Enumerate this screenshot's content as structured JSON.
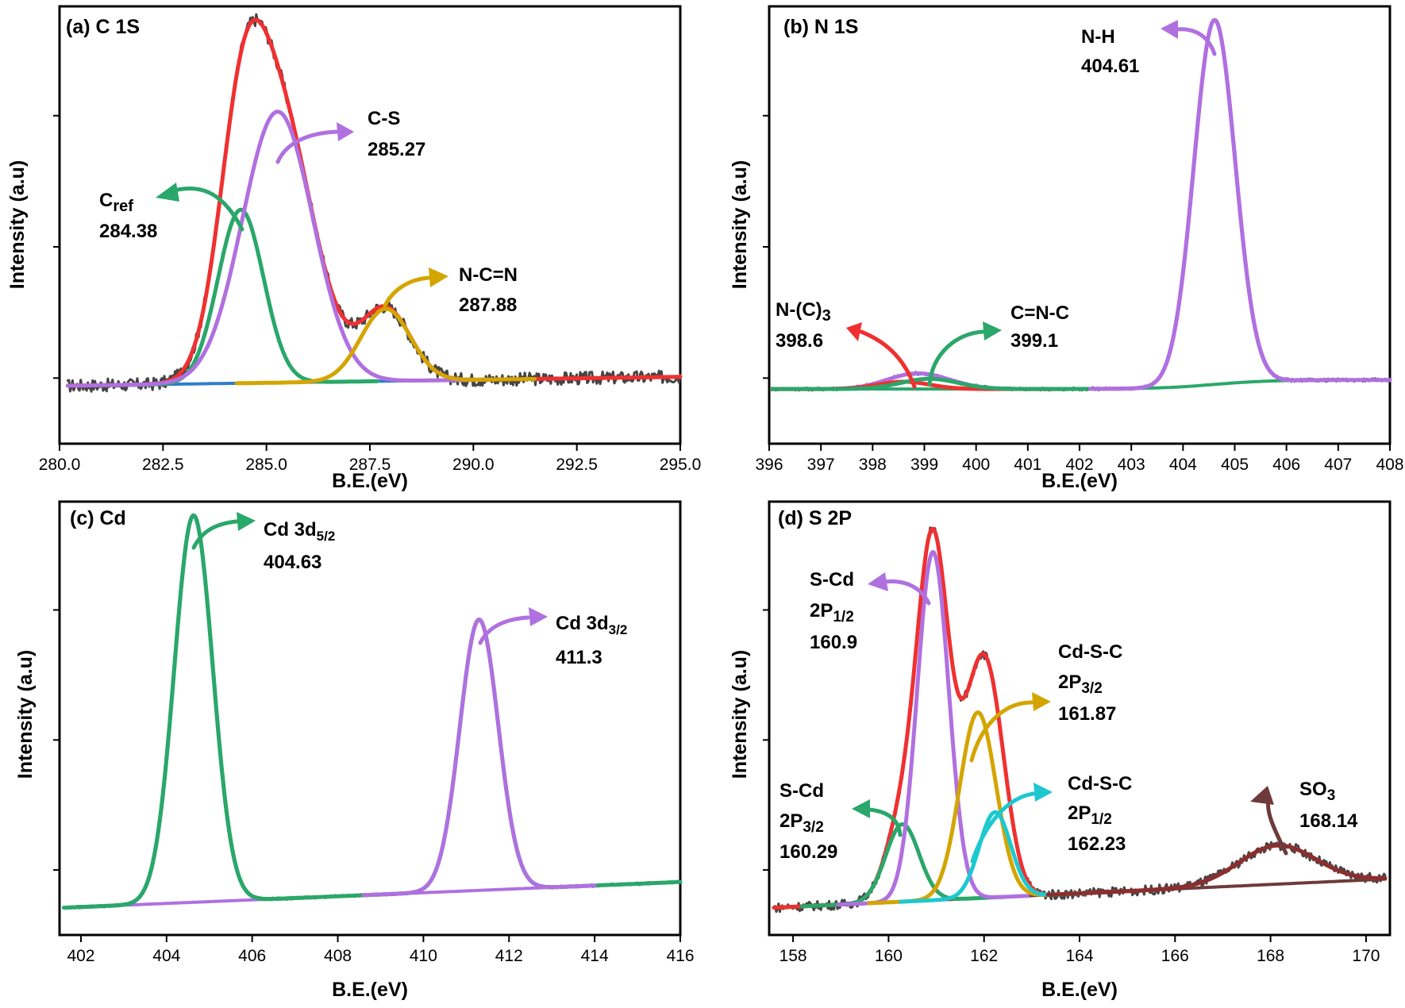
{
  "chart_data": [
    {
      "type": "line",
      "title": "(a) C 1S",
      "xlabel": "B.E.(eV)",
      "ylabel": "Intensity (a.u)",
      "xlim": [
        280,
        295
      ],
      "ylim": [
        -0.16,
        1.05
      ],
      "xticks": [
        280,
        282.5,
        285,
        287.5,
        290,
        292.5,
        295
      ],
      "xtick_labels": [
        "280.0",
        "282.5",
        "285.0",
        "287.5",
        "290.0",
        "292.5",
        "295.0"
      ],
      "baseline": {
        "start": 0.0,
        "end": 0.025,
        "color": "#2f7ecb"
      },
      "raw": {
        "x0": 280.2,
        "x1": 295,
        "noise": 0.018,
        "color": "#444444"
      },
      "components": [
        {
          "name": "C_ref",
          "center": 284.38,
          "height": 0.48,
          "width": 0.55,
          "color": "#2aa76a"
        },
        {
          "name": "C-S",
          "center": 285.27,
          "height": 0.75,
          "width": 0.85,
          "color": "#b070e0"
        },
        {
          "name": "N-C=N",
          "center": 287.88,
          "height": 0.2,
          "width": 0.6,
          "color": "#d4a500"
        }
      ],
      "envelope_color": "#f03030",
      "annotations": [
        {
          "label": "C",
          "sub": "ref",
          "value": "284.38",
          "arrow_color": "#2aa76a"
        },
        {
          "label": "C-S",
          "value": "285.27",
          "arrow_color": "#b070e0"
        },
        {
          "label": "N-C=N",
          "value": "287.88",
          "arrow_color": "#d4a500"
        }
      ]
    },
    {
      "type": "line",
      "title": "(b) N 1S",
      "xlabel": "B.E.(eV)",
      "ylabel": "Intensity (a.u)",
      "xlim": [
        396,
        408
      ],
      "ylim": [
        -0.15,
        1.05
      ],
      "xticks": [
        396,
        397,
        398,
        399,
        400,
        401,
        402,
        403,
        404,
        405,
        406,
        407,
        408
      ],
      "xtick_labels": [
        "396",
        "397",
        "398",
        "399",
        "400",
        "401",
        "402",
        "403",
        "404",
        "405",
        "406",
        "407",
        "408"
      ],
      "baseline": {
        "start": 0.0,
        "end": 0.025,
        "step_center": 404.6,
        "color": "#2aa76a"
      },
      "raw": {
        "x0": 396.05,
        "x1": 408,
        "noise": 0.004,
        "color": "#444444"
      },
      "components": [
        {
          "name": "N-(C)3",
          "center": 398.6,
          "height": 0.02,
          "width": 0.5,
          "color": "#f03030"
        },
        {
          "name": "C=N-C",
          "center": 399.1,
          "height": 0.028,
          "width": 0.55,
          "color": "#2aa76a"
        },
        {
          "name": "N-H",
          "center": 404.61,
          "height": 1.0,
          "width": 0.4,
          "color": "#b070e0"
        }
      ],
      "envelope_color": "#b070e0",
      "annotations": [
        {
          "label": "N-(C)",
          "sub": "3",
          "value": "398.6",
          "arrow_color": "#f03030"
        },
        {
          "label": "C=N-C",
          "value": "399.1",
          "arrow_color": "#2aa76a"
        },
        {
          "label": "N-H",
          "value": "404.61",
          "arrow_color": "#b070e0"
        }
      ]
    },
    {
      "type": "line",
      "title": "(c) Cd",
      "xlabel": "B.E.(eV)",
      "ylabel": "Intensity (a.u)",
      "xlim": [
        401.5,
        416
      ],
      "ylim": [
        -0.07,
        1.05
      ],
      "xticks": [
        402,
        404,
        406,
        408,
        410,
        412,
        414,
        416
      ],
      "xtick_labels": [
        "402",
        "404",
        "406",
        "408",
        "410",
        "412",
        "414",
        "416"
      ],
      "baseline": {
        "start": 0.0,
        "end": 0.067,
        "color": "#b070e0"
      },
      "raw": {
        "x0": 401.6,
        "x1": 416,
        "noise": 0.003,
        "color": "#444444"
      },
      "components": [
        {
          "name": "Cd 3d5/2",
          "center": 404.63,
          "height": 1.0,
          "width": 0.45,
          "color": "#2aa76a"
        },
        {
          "name": "Cd 3d3/2",
          "center": 411.3,
          "height": 0.7,
          "width": 0.45,
          "color": "#b070e0"
        }
      ],
      "envelope_color": "#2aa76a",
      "annotations": [
        {
          "label": "Cd 3d",
          "sub": "5/2",
          "value": "404.63",
          "arrow_color": "#2aa76a"
        },
        {
          "label": "Cd 3d",
          "sub": "3/2",
          "value": "411.3",
          "arrow_color": "#b070e0"
        }
      ]
    },
    {
      "type": "line",
      "title": "(d) S 2P",
      "xlabel": "B.E.(eV)",
      "ylabel": "Intensity (a.u)",
      "xlim": [
        157.5,
        170.5
      ],
      "ylim": [
        -0.07,
        1.05
      ],
      "xticks": [
        158,
        160,
        162,
        164,
        166,
        168,
        170
      ],
      "xtick_labels": [
        "158",
        "160",
        "162",
        "164",
        "166",
        "168",
        "170"
      ],
      "baseline": {
        "start": 0.0,
        "end": 0.075,
        "color": "#6e3a3a"
      },
      "raw": {
        "x0": 157.6,
        "x1": 170.4,
        "noise": 0.012,
        "color": "#444444"
      },
      "components": [
        {
          "name": "S-Cd 2P3/2",
          "center": 160.29,
          "height": 0.2,
          "width": 0.35,
          "color": "#2aa76a"
        },
        {
          "name": "S-Cd 2P1/2",
          "center": 160.93,
          "height": 0.9,
          "width": 0.33,
          "color": "#b070e0"
        },
        {
          "name": "Cd-S-C 2P3/2",
          "center": 161.87,
          "height": 0.48,
          "width": 0.38,
          "color": "#d4a500"
        },
        {
          "name": "Cd-S-C 2P1/2",
          "center": 162.23,
          "height": 0.22,
          "width": 0.33,
          "color": "#1ec8d0"
        },
        {
          "name": "SO3",
          "center": 168.14,
          "height": 0.1,
          "width": 0.8,
          "color": "#8b2e2e"
        }
      ],
      "envelope_color": "#f03030",
      "annotations": [
        {
          "label": "S-Cd",
          "line2": "2P",
          "sub": "1/2",
          "value": "160.9",
          "arrow_color": "#b070e0"
        },
        {
          "label": "Cd-S-C",
          "line2": "2P",
          "sub": "3/2",
          "value": "161.87",
          "arrow_color": "#d4a500"
        },
        {
          "label": "Cd-S-C",
          "line2": "2P",
          "sub": "1/2",
          "value": "162.23",
          "arrow_color": "#1ec8d0"
        },
        {
          "label": "S-Cd",
          "line2": "2P",
          "sub": "3/2",
          "value": "160.29",
          "arrow_color": "#2aa76a"
        },
        {
          "label": "SO",
          "sub": "3",
          "value": "168.14",
          "arrow_color": "#6e3a3a"
        }
      ]
    }
  ]
}
